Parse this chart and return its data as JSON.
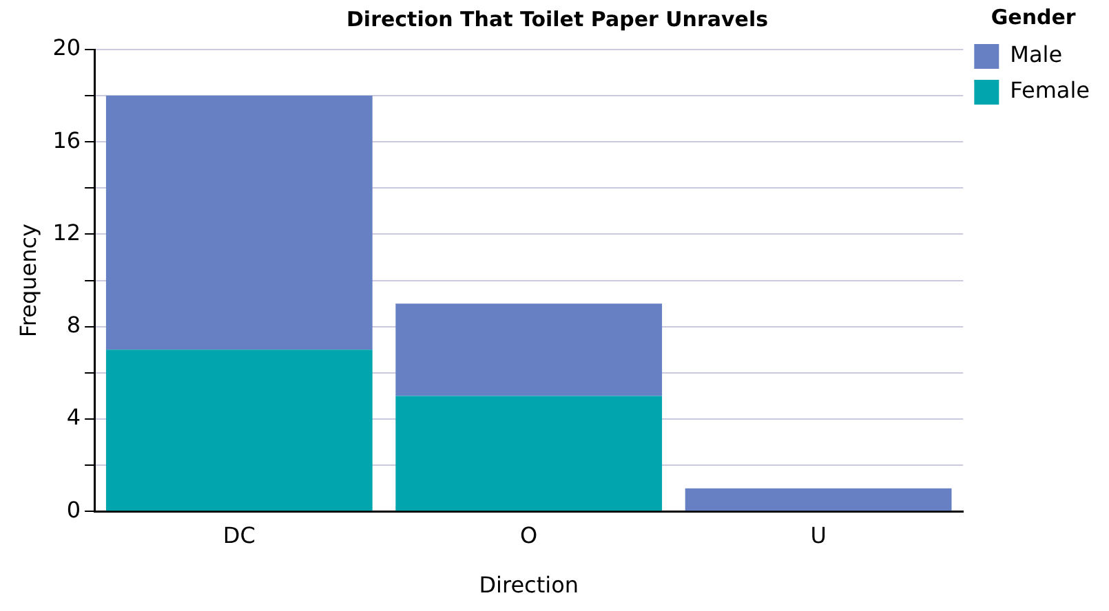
{
  "chart_data": {
    "type": "bar",
    "title": "Direction That Toilet Paper Unravels",
    "xlabel": "Direction",
    "ylabel": "Frequency",
    "legend_title": "Gender",
    "categories": [
      "DC",
      "O",
      "U"
    ],
    "stacked": true,
    "series": [
      {
        "name": "Female",
        "color": "#00a5ad",
        "values": [
          7,
          5,
          0
        ]
      },
      {
        "name": "Male",
        "color": "#6780c3",
        "values": [
          11,
          4,
          1
        ]
      }
    ],
    "ylim": [
      0,
      20
    ],
    "yticks": [
      0,
      {
        "value": 2,
        "label": null
      },
      4,
      {
        "value": 6,
        "label": null
      },
      8,
      {
        "value": 10,
        "label": null
      },
      12,
      {
        "value": 14,
        "label": null
      },
      16,
      {
        "value": 18,
        "label": null
      },
      20
    ],
    "grid": "y",
    "legend": "right"
  }
}
